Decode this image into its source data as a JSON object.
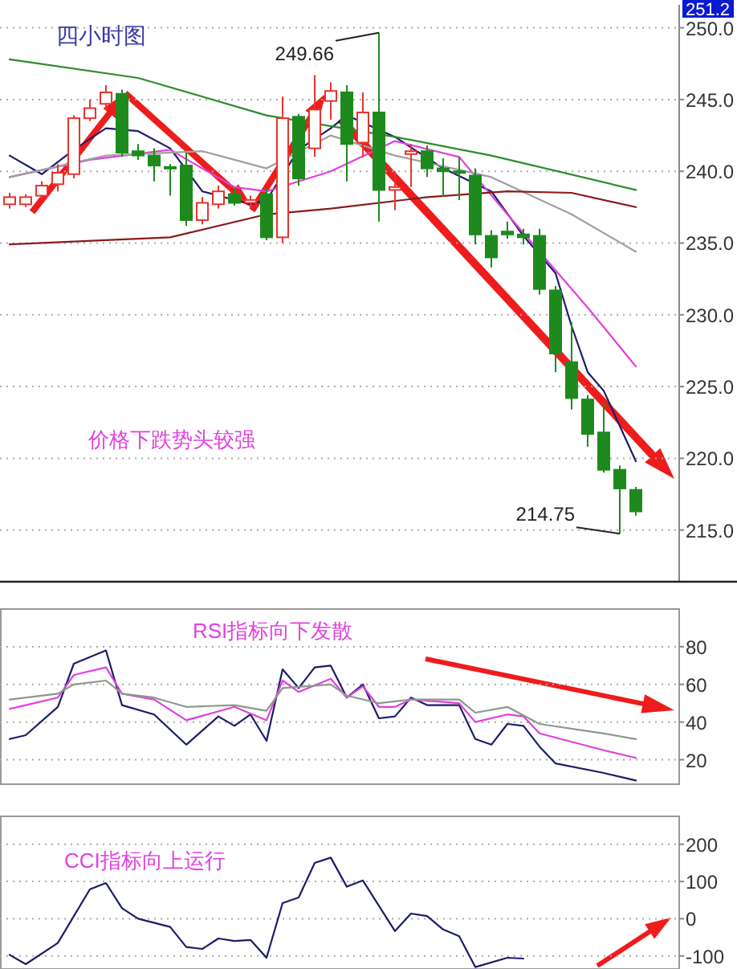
{
  "chart_data": [
    {
      "type": "candlestick",
      "title": "四小时图",
      "annotations": [
        "价格下跌势头较强",
        "249.66",
        "214.75",
        "251.2"
      ],
      "categories": [
        null,
        null,
        null,
        null,
        null,
        null,
        null,
        null,
        null,
        null,
        null,
        null,
        null,
        null,
        null,
        null,
        null,
        null,
        null,
        null,
        null,
        null,
        null,
        null,
        null,
        null,
        null,
        null,
        null,
        null,
        null,
        null,
        null,
        null,
        null,
        null,
        null,
        null,
        null,
        null
      ],
      "ohlc": [
        [
          237.7,
          238.5,
          237.4,
          238.2
        ],
        [
          237.7,
          238.4,
          237.5,
          238.2
        ],
        [
          238.3,
          239.3,
          238.0,
          239.0
        ],
        [
          239.1,
          240.5,
          238.6,
          239.9
        ],
        [
          239.8,
          243.9,
          239.5,
          243.7
        ],
        [
          243.7,
          245.0,
          243.5,
          244.4
        ],
        [
          244.7,
          246.0,
          244.3,
          245.5
        ],
        [
          245.4,
          245.7,
          241.0,
          241.3
        ],
        [
          241.4,
          241.9,
          240.8,
          241.1
        ],
        [
          241.1,
          241.6,
          239.3,
          240.4
        ],
        [
          240.3,
          240.5,
          238.3,
          240.2
        ],
        [
          240.4,
          241.3,
          236.2,
          236.6
        ],
        [
          236.6,
          238.2,
          236.3,
          237.8
        ],
        [
          237.7,
          239.0,
          237.4,
          238.6
        ],
        [
          238.4,
          238.8,
          237.6,
          237.8
        ],
        [
          237.8,
          238.3,
          237.4,
          238.0
        ],
        [
          238.4,
          238.8,
          235.2,
          235.4
        ],
        [
          235.4,
          245.2,
          235.0,
          243.7
        ],
        [
          243.8,
          244.0,
          239.0,
          239.5
        ],
        [
          241.6,
          246.7,
          241.0,
          244.3
        ],
        [
          244.9,
          246.2,
          243.6,
          245.6
        ],
        [
          245.5,
          246.0,
          239.3,
          241.9
        ],
        [
          242.0,
          245.5,
          241.0,
          244.1
        ],
        [
          244.1,
          249.66,
          236.5,
          238.7
        ],
        [
          238.7,
          240.0,
          237.3,
          238.9
        ],
        [
          241.2,
          241.9,
          238.9,
          241.4
        ],
        [
          241.4,
          241.8,
          239.6,
          240.2
        ],
        [
          240.2,
          240.9,
          238.2,
          240.0
        ],
        [
          240.0,
          241.0,
          238.0,
          239.9
        ],
        [
          239.7,
          240.2,
          234.9,
          235.6
        ],
        [
          235.5,
          235.9,
          233.3,
          234.0
        ],
        [
          235.8,
          236.5,
          235.3,
          235.6
        ],
        [
          235.6,
          236.0,
          234.9,
          235.4
        ],
        [
          235.5,
          236.0,
          231.4,
          231.8
        ],
        [
          231.7,
          232.0,
          226.0,
          227.3
        ],
        [
          226.7,
          229.5,
          223.4,
          224.2
        ],
        [
          224.1,
          224.4,
          220.8,
          221.7
        ],
        [
          221.8,
          223.9,
          219.0,
          219.2
        ],
        [
          219.2,
          219.5,
          214.75,
          217.9
        ],
        [
          217.8,
          218.0,
          216.0,
          216.3
        ]
      ],
      "series": [
        {
          "type": "line",
          "color": "#1c1c6a",
          "values": [
            241.1,
            null,
            239.8,
            null,
            241.5,
            null,
            243.0,
            null,
            242.8,
            null,
            241.6,
            null,
            238.6,
            null,
            null,
            237.7,
            238.0,
            null,
            241.5,
            null,
            243.0,
            243.9,
            null,
            null,
            242.4,
            null,
            null,
            240.2,
            null,
            null,
            238.6,
            null,
            235.5,
            null,
            232.9,
            229.2,
            226.0,
            224.7,
            null,
            219.8
          ]
        },
        {
          "type": "line",
          "color": "#e040e0",
          "values": [
            239.6,
            null,
            null,
            null,
            null,
            240.8,
            null,
            null,
            null,
            null,
            241.5,
            null,
            null,
            null,
            238.9,
            null,
            238.6,
            null,
            null,
            null,
            240.0,
            null,
            null,
            null,
            242.1,
            null,
            null,
            null,
            241.0,
            null,
            null,
            237.0,
            null,
            234.4,
            null,
            null,
            230.5,
            null,
            null,
            226.4
          ]
        },
        {
          "type": "line",
          "color": "#a0a0a0",
          "values": [
            239.6,
            null,
            null,
            null,
            null,
            null,
            241.1,
            null,
            null,
            null,
            null,
            null,
            241.4,
            null,
            null,
            null,
            240.2,
            null,
            null,
            null,
            242.5,
            null,
            null,
            null,
            241.1,
            null,
            null,
            null,
            null,
            null,
            239.6,
            null,
            null,
            null,
            null,
            237.0,
            null,
            null,
            null,
            234.4
          ]
        },
        {
          "type": "line",
          "color": "#2e8b2e",
          "values": [
            247.8,
            null,
            null,
            null,
            null,
            null,
            null,
            null,
            246.5,
            null,
            null,
            null,
            null,
            null,
            null,
            null,
            243.9,
            null,
            null,
            null,
            null,
            null,
            null,
            null,
            242.4,
            null,
            null,
            null,
            null,
            null,
            241.1,
            null,
            null,
            null,
            null,
            null,
            null,
            null,
            null,
            238.7
          ]
        },
        {
          "type": "line",
          "color": "#8b1a1a",
          "values": [
            234.9,
            null,
            null,
            null,
            null,
            null,
            null,
            null,
            null,
            null,
            235.4,
            null,
            null,
            null,
            null,
            null,
            237.0,
            null,
            null,
            null,
            237.4,
            null,
            null,
            null,
            null,
            null,
            238.2,
            null,
            null,
            null,
            null,
            238.6,
            null,
            null,
            null,
            238.5,
            null,
            null,
            null,
            237.5
          ]
        }
      ],
      "ylim": [
        211.4,
        251.6
      ],
      "yticks": [
        {
          "value": 215,
          "label": "215.0"
        },
        {
          "value": 220,
          "label": "220.0"
        },
        {
          "value": 225,
          "label": "225.0"
        },
        {
          "value": 230,
          "label": "230.0"
        },
        {
          "value": 235,
          "label": "235.0"
        },
        {
          "value": 240,
          "label": "240.0"
        },
        {
          "value": 245,
          "label": "245.0"
        },
        {
          "value": 250,
          "label": "250.0"
        }
      ],
      "grid": "y",
      "tick_labels": "y"
    },
    {
      "type": "line",
      "title": "RSI指标向下发散",
      "categories": [
        null,
        null,
        null,
        null,
        null,
        null,
        null,
        null,
        null,
        null,
        null,
        null,
        null,
        null,
        null,
        null,
        null,
        null,
        null,
        null,
        null,
        null,
        null,
        null,
        null,
        null,
        null,
        null,
        null,
        null,
        null,
        null,
        null,
        null,
        null,
        null,
        null,
        null,
        null,
        null
      ],
      "series": [
        {
          "color": "#1c1c6a",
          "values": [
            31,
            33,
            null,
            48,
            71,
            null,
            78,
            49,
            null,
            44,
            null,
            28,
            null,
            43,
            38,
            44,
            30,
            68,
            58,
            69,
            70,
            53,
            60,
            42,
            43,
            53,
            49,
            null,
            49,
            31,
            28,
            39,
            38,
            27,
            18,
            null,
            null,
            13,
            null,
            9
          ]
        },
        {
          "color": "#e040e0",
          "values": [
            47,
            49,
            null,
            53,
            65,
            null,
            69,
            55,
            null,
            52,
            null,
            41,
            null,
            null,
            48,
            null,
            41,
            62,
            56,
            null,
            63,
            53,
            59,
            48,
            48,
            52,
            null,
            null,
            50,
            40,
            null,
            44,
            43,
            34,
            null,
            null,
            null,
            25,
            null,
            21
          ]
        },
        {
          "color": "#8a9a8a",
          "values": [
            52,
            null,
            null,
            55,
            60,
            null,
            62,
            55,
            null,
            53,
            null,
            48,
            null,
            null,
            49,
            null,
            46,
            58,
            null,
            null,
            60,
            54,
            null,
            50,
            null,
            52,
            null,
            null,
            52,
            45,
            null,
            48,
            null,
            39,
            null,
            null,
            null,
            34,
            null,
            31
          ]
        }
      ],
      "ylim": [
        7,
        100
      ],
      "yticks": [
        20,
        40,
        60,
        80
      ],
      "grid": "y",
      "tick_labels": "y"
    },
    {
      "type": "line",
      "title": "CCI指标向上运行",
      "categories": [
        null,
        null,
        null,
        null,
        null,
        null,
        null,
        null,
        null,
        null,
        null,
        null,
        null,
        null,
        null,
        null,
        null,
        null,
        null,
        null,
        null,
        null,
        null,
        null,
        null,
        null,
        null,
        null,
        null,
        null,
        null,
        null,
        null,
        null,
        null,
        null,
        null,
        null,
        null,
        null
      ],
      "series": [
        {
          "color": "#1c1c6a",
          "values": [
            -97,
            -122,
            null,
            -65,
            null,
            79,
            96,
            28,
            0,
            null,
            -22,
            -76,
            -81,
            -53,
            -60,
            -57,
            -105,
            42,
            57,
            150,
            164,
            86,
            103,
            null,
            -33,
            14,
            7,
            -29,
            -47,
            -130,
            null,
            -105,
            -107,
            null,
            null,
            null,
            null,
            null,
            null,
            null
          ]
        }
      ],
      "ylim": [
        -135,
        275
      ],
      "yticks": [
        -100,
        0,
        100,
        200
      ],
      "grid": "y",
      "tick_labels": "y"
    }
  ]
}
